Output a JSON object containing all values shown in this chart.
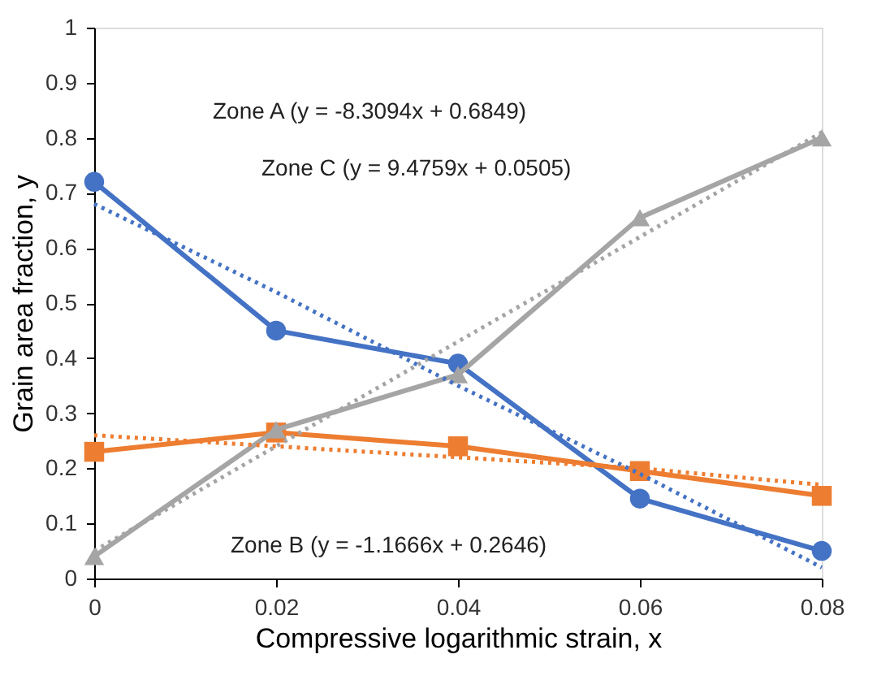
{
  "chart_data": {
    "type": "line",
    "xlabel": "Compressive logarithmic strain, x",
    "ylabel": "Grain area fraction, y",
    "x": [
      0,
      0.02,
      0.04,
      0.06,
      0.08
    ],
    "series": [
      {
        "color": "#4472c4",
        "marker": "circle",
        "line_style": "solid",
        "values": [
          0.72,
          0.45,
          0.39,
          0.145,
          0.05
        ]
      },
      {
        "color": "#ed7d31",
        "marker": "square",
        "line_style": "solid",
        "values": [
          0.23,
          0.265,
          0.24,
          0.195,
          0.15
        ]
      },
      {
        "color": "#a5a5a5",
        "marker": "triangle",
        "line_style": "solid",
        "values": [
          0.04,
          0.27,
          0.37,
          0.655,
          0.8
        ]
      },
      {
        "color": "#4472c4",
        "marker": "none",
        "line_style": "dotted",
        "values": [
          0.68,
          0.52,
          0.35,
          0.19,
          0.02
        ]
      },
      {
        "color": "#ed7d31",
        "marker": "none",
        "line_style": "dotted",
        "values": [
          0.26,
          0.24,
          0.22,
          0.2,
          0.17
        ]
      },
      {
        "color": "#a5a5a5",
        "marker": "none",
        "line_style": "dotted",
        "values": [
          0.05,
          0.24,
          0.43,
          0.62,
          0.81
        ]
      }
    ],
    "annotations": [
      "Zone A (y = -8.3094x + 0.6849)",
      "Zone C (y = 9.4759x + 0.0505)",
      "Zone B (y = -1.1666x + 0.2646)"
    ],
    "xlim": [
      0,
      0.08
    ],
    "xticks": [
      {
        "value": 0,
        "label": "0"
      },
      0.02,
      0.04,
      0.06,
      0.08
    ],
    "ylim": [
      0,
      1
    ],
    "yticks": [
      {
        "value": 0,
        "label": "0"
      },
      0.1,
      0.2,
      0.3,
      0.4,
      0.5,
      0.6,
      0.7,
      0.8,
      0.9,
      {
        "value": 1,
        "label": "1"
      }
    ],
    "grid": false
  }
}
